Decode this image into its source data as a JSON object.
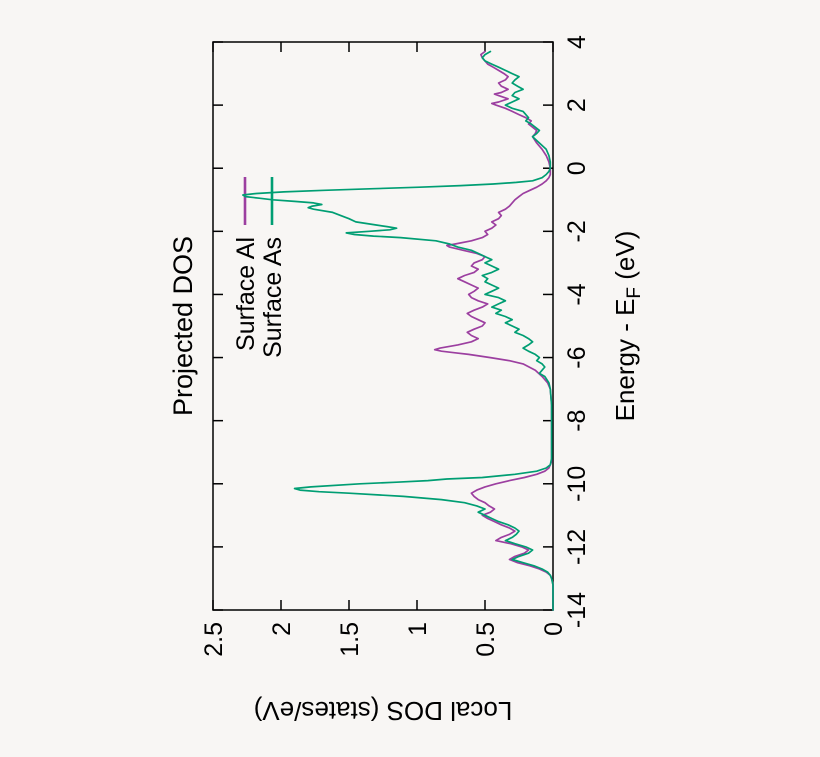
{
  "chart_data": {
    "type": "line",
    "title": "Projected DOS",
    "xlabel": {
      "main": "Energy - E",
      "sub": "F",
      "suffix": " (eV)"
    },
    "ylabel": "Local DOS (states/eV)",
    "xlim": [
      -14,
      4
    ],
    "ylim": [
      0,
      2.5
    ],
    "xticks": [
      -14,
      -12,
      -10,
      -8,
      -6,
      -4,
      -2,
      0,
      2,
      4
    ],
    "xtick_labels": [
      "-14",
      "-12",
      "-10",
      "-8",
      "-6",
      "-4",
      "-2",
      "0",
      "2",
      "4"
    ],
    "yticks": [
      0,
      0.5,
      1,
      1.5,
      2,
      2.5
    ],
    "ytick_labels": [
      "0",
      "0.5",
      "1",
      "1.5",
      "2",
      "2.5"
    ],
    "grid": false,
    "legend_position": "top-center-inside",
    "colors": {
      "axis": "#000000",
      "background": "#f8f6f4",
      "surface_al": "#9c3fa0",
      "surface_as": "#009e73"
    },
    "series": [
      {
        "name": "Surface Al",
        "color": "#9c3fa0",
        "points": [
          [
            -14,
            0
          ],
          [
            -13.2,
            0
          ],
          [
            -13,
            0.01
          ],
          [
            -12.9,
            0.02
          ],
          [
            -12.8,
            0.05
          ],
          [
            -12.7,
            0.1
          ],
          [
            -12.6,
            0.17
          ],
          [
            -12.5,
            0.26
          ],
          [
            -12.4,
            0.32
          ],
          [
            -12.3,
            0.28
          ],
          [
            -12.2,
            0.21
          ],
          [
            -12.1,
            0.18
          ],
          [
            -12,
            0.23
          ],
          [
            -11.9,
            0.31
          ],
          [
            -11.8,
            0.42
          ],
          [
            -11.7,
            0.38
          ],
          [
            -11.6,
            0.32
          ],
          [
            -11.5,
            0.28
          ],
          [
            -11.4,
            0.32
          ],
          [
            -11.3,
            0.38
          ],
          [
            -11.2,
            0.43
          ],
          [
            -11.1,
            0.48
          ],
          [
            -11,
            0.52
          ],
          [
            -10.9,
            0.46
          ],
          [
            -10.8,
            0.43
          ],
          [
            -10.7,
            0.47
          ],
          [
            -10.6,
            0.5
          ],
          [
            -10.5,
            0.55
          ],
          [
            -10.4,
            0.58
          ],
          [
            -10.3,
            0.6
          ],
          [
            -10.2,
            0.56
          ],
          [
            -10.1,
            0.5
          ],
          [
            -10,
            0.42
          ],
          [
            -9.9,
            0.32
          ],
          [
            -9.8,
            0.21
          ],
          [
            -9.7,
            0.12
          ],
          [
            -9.6,
            0.06
          ],
          [
            -9.5,
            0.03
          ],
          [
            -9.3,
            0.01
          ],
          [
            -9,
            0.01
          ],
          [
            -8.5,
            0.01
          ],
          [
            -8,
            0.01
          ],
          [
            -7.5,
            0.01
          ],
          [
            -7,
            0.02
          ],
          [
            -6.8,
            0.04
          ],
          [
            -6.6,
            0.08
          ],
          [
            -6.4,
            0.13
          ],
          [
            -6.2,
            0.22
          ],
          [
            -6.1,
            0.32
          ],
          [
            -6,
            0.46
          ],
          [
            -5.9,
            0.62
          ],
          [
            -5.85,
            0.72
          ],
          [
            -5.8,
            0.82
          ],
          [
            -5.75,
            0.87
          ],
          [
            -5.7,
            0.83
          ],
          [
            -5.6,
            0.7
          ],
          [
            -5.5,
            0.6
          ],
          [
            -5.4,
            0.55
          ],
          [
            -5.3,
            0.6
          ],
          [
            -5.2,
            0.63
          ],
          [
            -5.1,
            0.58
          ],
          [
            -5,
            0.52
          ],
          [
            -4.9,
            0.5
          ],
          [
            -4.8,
            0.55
          ],
          [
            -4.7,
            0.6
          ],
          [
            -4.6,
            0.63
          ],
          [
            -4.5,
            0.58
          ],
          [
            -4.4,
            0.52
          ],
          [
            -4.3,
            0.48
          ],
          [
            -4.2,
            0.55
          ],
          [
            -4.1,
            0.6
          ],
          [
            -4,
            0.62
          ],
          [
            -3.9,
            0.58
          ],
          [
            -3.8,
            0.55
          ],
          [
            -3.7,
            0.6
          ],
          [
            -3.6,
            0.65
          ],
          [
            -3.5,
            0.7
          ],
          [
            -3.4,
            0.65
          ],
          [
            -3.3,
            0.58
          ],
          [
            -3.2,
            0.55
          ],
          [
            -3.1,
            0.6
          ],
          [
            -3,
            0.58
          ],
          [
            -2.9,
            0.52
          ],
          [
            -2.8,
            0.5
          ],
          [
            -2.7,
            0.56
          ],
          [
            -2.6,
            0.66
          ],
          [
            -2.5,
            0.76
          ],
          [
            -2.45,
            0.78
          ],
          [
            -2.4,
            0.72
          ],
          [
            -2.3,
            0.6
          ],
          [
            -2.2,
            0.52
          ],
          [
            -2.1,
            0.48
          ],
          [
            -2,
            0.5
          ],
          [
            -1.9,
            0.45
          ],
          [
            -1.8,
            0.42
          ],
          [
            -1.7,
            0.45
          ],
          [
            -1.6,
            0.4
          ],
          [
            -1.5,
            0.38
          ],
          [
            -1.4,
            0.4
          ],
          [
            -1.3,
            0.35
          ],
          [
            -1.2,
            0.32
          ],
          [
            -1.1,
            0.3
          ],
          [
            -1,
            0.28
          ],
          [
            -0.9,
            0.25
          ],
          [
            -0.8,
            0.22
          ],
          [
            -0.7,
            0.17
          ],
          [
            -0.6,
            0.12
          ],
          [
            -0.5,
            0.08
          ],
          [
            -0.4,
            0.05
          ],
          [
            -0.3,
            0.03
          ],
          [
            -0.2,
            0.02
          ],
          [
            0,
            0.02
          ],
          [
            0.2,
            0.03
          ],
          [
            0.4,
            0.05
          ],
          [
            0.6,
            0.08
          ],
          [
            0.8,
            0.12
          ],
          [
            1,
            0.15
          ],
          [
            1.1,
            0.13
          ],
          [
            1.2,
            0.12
          ],
          [
            1.3,
            0.15
          ],
          [
            1.4,
            0.18
          ],
          [
            1.5,
            0.16
          ],
          [
            1.6,
            0.2
          ],
          [
            1.7,
            0.25
          ],
          [
            1.8,
            0.3
          ],
          [
            1.9,
            0.35
          ],
          [
            2,
            0.42
          ],
          [
            2.05,
            0.45
          ],
          [
            2.1,
            0.4
          ],
          [
            2.2,
            0.33
          ],
          [
            2.3,
            0.4
          ],
          [
            2.35,
            0.43
          ],
          [
            2.4,
            0.38
          ],
          [
            2.5,
            0.33
          ],
          [
            2.6,
            0.38
          ],
          [
            2.7,
            0.4
          ],
          [
            2.8,
            0.35
          ],
          [
            2.9,
            0.33
          ],
          [
            3,
            0.36
          ],
          [
            3.1,
            0.4
          ],
          [
            3.2,
            0.44
          ],
          [
            3.3,
            0.48
          ],
          [
            3.4,
            0.5
          ],
          [
            3.5,
            0.52
          ],
          [
            3.6,
            0.53
          ],
          [
            3.7,
            0.5
          ]
        ]
      },
      {
        "name": "Surface As",
        "color": "#009e73",
        "points": [
          [
            -14,
            0
          ],
          [
            -13.2,
            0
          ],
          [
            -13,
            0.01
          ],
          [
            -12.9,
            0.02
          ],
          [
            -12.8,
            0.04
          ],
          [
            -12.7,
            0.08
          ],
          [
            -12.6,
            0.14
          ],
          [
            -12.5,
            0.22
          ],
          [
            -12.4,
            0.3
          ],
          [
            -12.3,
            0.25
          ],
          [
            -12.2,
            0.18
          ],
          [
            -12.1,
            0.15
          ],
          [
            -12,
            0.2
          ],
          [
            -11.9,
            0.28
          ],
          [
            -11.8,
            0.35
          ],
          [
            -11.7,
            0.3
          ],
          [
            -11.6,
            0.27
          ],
          [
            -11.5,
            0.25
          ],
          [
            -11.4,
            0.28
          ],
          [
            -11.3,
            0.33
          ],
          [
            -11.2,
            0.4
          ],
          [
            -11.1,
            0.45
          ],
          [
            -11,
            0.5
          ],
          [
            -10.9,
            0.55
          ],
          [
            -10.8,
            0.5
          ],
          [
            -10.7,
            0.56
          ],
          [
            -10.6,
            0.65
          ],
          [
            -10.5,
            0.82
          ],
          [
            -10.4,
            1.1
          ],
          [
            -10.3,
            1.5
          ],
          [
            -10.25,
            1.72
          ],
          [
            -10.2,
            1.86
          ],
          [
            -10.15,
            1.9
          ],
          [
            -10.1,
            1.78
          ],
          [
            -10,
            1.42
          ],
          [
            -9.95,
            1.15
          ],
          [
            -9.9,
            0.92
          ],
          [
            -9.85,
            0.78
          ],
          [
            -9.8,
            0.52
          ],
          [
            -9.7,
            0.28
          ],
          [
            -9.6,
            0.12
          ],
          [
            -9.5,
            0.05
          ],
          [
            -9.4,
            0.02
          ],
          [
            -9.2,
            0.01
          ],
          [
            -9,
            0.01
          ],
          [
            -8.5,
            0.01
          ],
          [
            -8,
            0.01
          ],
          [
            -7.5,
            0.01
          ],
          [
            -7,
            0.02
          ],
          [
            -6.8,
            0.03
          ],
          [
            -6.6,
            0.06
          ],
          [
            -6.5,
            0.1
          ],
          [
            -6.4,
            0.08
          ],
          [
            -6.3,
            0.06
          ],
          [
            -6.2,
            0.08
          ],
          [
            -6.1,
            0.12
          ],
          [
            -6,
            0.1
          ],
          [
            -5.9,
            0.13
          ],
          [
            -5.8,
            0.18
          ],
          [
            -5.7,
            0.22
          ],
          [
            -5.6,
            0.18
          ],
          [
            -5.5,
            0.15
          ],
          [
            -5.4,
            0.18
          ],
          [
            -5.3,
            0.22
          ],
          [
            -5.2,
            0.28
          ],
          [
            -5.1,
            0.25
          ],
          [
            -5,
            0.3
          ],
          [
            -4.9,
            0.35
          ],
          [
            -4.8,
            0.3
          ],
          [
            -4.7,
            0.35
          ],
          [
            -4.6,
            0.42
          ],
          [
            -4.5,
            0.38
          ],
          [
            -4.4,
            0.45
          ],
          [
            -4.3,
            0.4
          ],
          [
            -4.2,
            0.35
          ],
          [
            -4.1,
            0.4
          ],
          [
            -4,
            0.5
          ],
          [
            -3.9,
            0.45
          ],
          [
            -3.8,
            0.4
          ],
          [
            -3.7,
            0.45
          ],
          [
            -3.6,
            0.5
          ],
          [
            -3.5,
            0.48
          ],
          [
            -3.4,
            0.52
          ],
          [
            -3.3,
            0.45
          ],
          [
            -3.2,
            0.4
          ],
          [
            -3.1,
            0.45
          ],
          [
            -3,
            0.5
          ],
          [
            -2.9,
            0.45
          ],
          [
            -2.8,
            0.5
          ],
          [
            -2.7,
            0.55
          ],
          [
            -2.6,
            0.6
          ],
          [
            -2.5,
            0.7
          ],
          [
            -2.4,
            0.76
          ],
          [
            -2.3,
            0.86
          ],
          [
            -2.2,
            1.12
          ],
          [
            -2.15,
            1.32
          ],
          [
            -2.1,
            1.46
          ],
          [
            -2.05,
            1.52
          ],
          [
            -2,
            1.35
          ],
          [
            -1.95,
            1.2
          ],
          [
            -1.9,
            1.15
          ],
          [
            -1.85,
            1.22
          ],
          [
            -1.8,
            1.3
          ],
          [
            -1.7,
            1.45
          ],
          [
            -1.6,
            1.5
          ],
          [
            -1.5,
            1.56
          ],
          [
            -1.4,
            1.62
          ],
          [
            -1.3,
            1.76
          ],
          [
            -1.25,
            1.8
          ],
          [
            -1.2,
            1.77
          ],
          [
            -1.15,
            1.7
          ],
          [
            -1.1,
            1.76
          ],
          [
            -1.05,
            1.9
          ],
          [
            -1,
            2.06
          ],
          [
            -0.95,
            2.16
          ],
          [
            -0.9,
            2.26
          ],
          [
            -0.85,
            2.28
          ],
          [
            -0.8,
            2.18
          ],
          [
            -0.75,
            1.98
          ],
          [
            -0.7,
            1.68
          ],
          [
            -0.65,
            1.32
          ],
          [
            -0.6,
            0.98
          ],
          [
            -0.55,
            0.68
          ],
          [
            -0.5,
            0.44
          ],
          [
            -0.45,
            0.27
          ],
          [
            -0.4,
            0.15
          ],
          [
            -0.3,
            0.08
          ],
          [
            -0.2,
            0.05
          ],
          [
            -0.1,
            0.03
          ],
          [
            0,
            0.02
          ],
          [
            0.2,
            0.02
          ],
          [
            0.4,
            0.03
          ],
          [
            0.6,
            0.05
          ],
          [
            0.8,
            0.1
          ],
          [
            1,
            0.15
          ],
          [
            1.1,
            0.12
          ],
          [
            1.2,
            0.1
          ],
          [
            1.4,
            0.16
          ],
          [
            1.5,
            0.2
          ],
          [
            1.6,
            0.18
          ],
          [
            1.8,
            0.22
          ],
          [
            1.9,
            0.3
          ],
          [
            2,
            0.35
          ],
          [
            2.1,
            0.3
          ],
          [
            2.2,
            0.25
          ],
          [
            2.3,
            0.3
          ],
          [
            2.4,
            0.28
          ],
          [
            2.5,
            0.22
          ],
          [
            2.6,
            0.26
          ],
          [
            2.7,
            0.3
          ],
          [
            2.8,
            0.28
          ],
          [
            2.9,
            0.25
          ],
          [
            3,
            0.3
          ],
          [
            3.1,
            0.35
          ],
          [
            3.2,
            0.4
          ],
          [
            3.3,
            0.45
          ],
          [
            3.4,
            0.5
          ],
          [
            3.5,
            0.52
          ],
          [
            3.6,
            0.5
          ],
          [
            3.7,
            0.46
          ]
        ]
      }
    ]
  }
}
